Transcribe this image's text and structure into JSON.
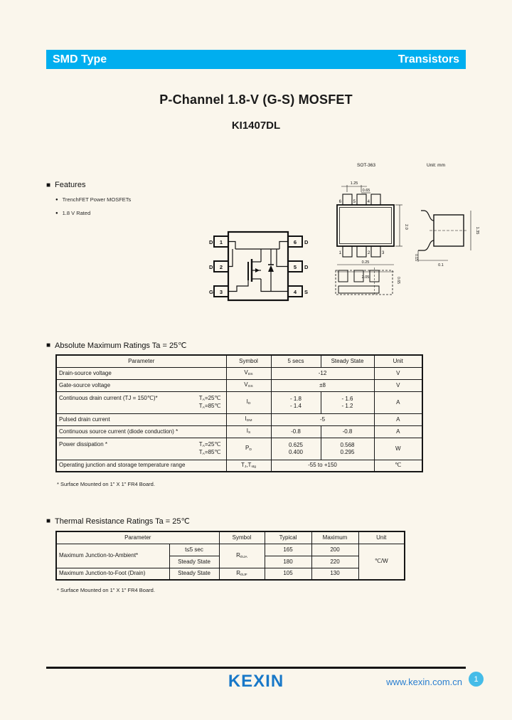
{
  "icons": {
    "square": "■",
    "dot": "●"
  },
  "header": {
    "left": "SMD Type",
    "right": "Transistors",
    "bar_color": "#00aeef"
  },
  "title": {
    "line1": "P-Channel 1.8-V (G-S) MOSFET",
    "line2": "KI1407DL"
  },
  "features": {
    "heading": "Features",
    "items": [
      "TrenchFET  Power MOSFETs",
      "1.8 V Rated"
    ]
  },
  "pkg": {
    "name": "SOT-363",
    "unit": "Unit: mm",
    "pins_top": [
      "6",
      "5",
      "4"
    ],
    "pins_bottom": [
      "1",
      "2",
      "3"
    ],
    "dims": {
      "d1": "1.25",
      "d2": "0.65",
      "d3": "2.0",
      "d4": "0.25",
      "d5": "2.05",
      "d6": "1.35",
      "d7": "0.15",
      "d8": "0.1",
      "d9": "0.65"
    }
  },
  "pinout": {
    "pins": {
      "p1": "1",
      "p2": "2",
      "p3": "3",
      "p4": "4",
      "p5": "5",
      "p6": "6"
    },
    "labels": {
      "l1": "D",
      "l2": "D",
      "l3": "G",
      "r1": "D",
      "r2": "D",
      "r3": "S"
    }
  },
  "absmax": {
    "heading": "Absolute Maximum Ratings Ta = 25℃",
    "columns": [
      "Parameter",
      "Symbol",
      "5 secs",
      "Steady State",
      "Unit"
    ],
    "rows": [
      {
        "param": "Drain-source voltage",
        "sym": [
          [
            "V",
            0
          ],
          [
            "DS",
            1
          ]
        ],
        "value": "-12",
        "unit": "V"
      },
      {
        "param": "Gate-source voltage",
        "sym": [
          [
            "V",
            0
          ],
          [
            "GS",
            1
          ]
        ],
        "value": "±8",
        "unit": "V"
      },
      {
        "param": "Continuous drain current (TJ = 150℃)*",
        "cond": [
          [
            [
              "T",
              0
            ],
            [
              "A",
              1
            ],
            [
              "=25℃",
              0
            ]
          ],
          [
            [
              "T",
              0
            ],
            [
              "A",
              1
            ],
            [
              "=85℃",
              0
            ]
          ]
        ],
        "sym": [
          [
            "I",
            0
          ],
          [
            "D",
            1
          ]
        ],
        "v5": [
          "- 1.8",
          "- 1.4"
        ],
        "vss": [
          "- 1.6",
          "- 1.2"
        ],
        "unit": "A"
      },
      {
        "param": "Pulsed drain current",
        "sym": [
          [
            "I",
            0
          ],
          [
            "DM",
            1
          ]
        ],
        "value": "-5",
        "unit": "A"
      },
      {
        "param": "Continuous source current (diode conduction) *",
        "sym": [
          [
            "I",
            0
          ],
          [
            "S",
            1
          ]
        ],
        "v5": "-0.8",
        "vss": "-0.8",
        "unit": "A"
      },
      {
        "param": "Power dissipation  *",
        "cond": [
          [
            [
              "T",
              0
            ],
            [
              "A",
              1
            ],
            [
              "=25℃",
              0
            ]
          ],
          [
            [
              "T",
              0
            ],
            [
              "A",
              1
            ],
            [
              "=85℃",
              0
            ]
          ]
        ],
        "sym": [
          [
            "P",
            0
          ],
          [
            "D",
            1
          ]
        ],
        "v5": [
          "0.625",
          "0.400"
        ],
        "vss": [
          "0.568",
          "0.295"
        ],
        "unit": "W"
      },
      {
        "param": "Operating junction and storage temperature range",
        "sym": [
          [
            "T",
            0
          ],
          [
            "J",
            1
          ],
          [
            ",T",
            0
          ],
          [
            "stg",
            1
          ]
        ],
        "value": "-55 to +150",
        "unit": "℃"
      }
    ],
    "footnote": "* Surface Mounted on 1\" X 1\" FR4 Board."
  },
  "thermal": {
    "heading": "Thermal Resistance  Ratings Ta = 25℃",
    "columns": [
      "Parameter",
      "Symbol",
      "Typical",
      "Maximum",
      "Unit"
    ],
    "rows": [
      {
        "param": "Maximum Junction-to-Ambient*",
        "cond": "t≤5 sec",
        "sym": [
          [
            "R",
            0
          ],
          [
            "thJA",
            1
          ]
        ],
        "typ": "165",
        "max": "200",
        "unit": "℃/W"
      },
      {
        "cond": "Steady State",
        "typ": "180",
        "max": "220"
      },
      {
        "param": "Maximum Junction-to-Foot (Drain)",
        "cond": "Steady State",
        "sym": [
          [
            "R",
            0
          ],
          [
            "thJF",
            1
          ]
        ],
        "typ": "105",
        "max": "130"
      }
    ],
    "footnote": "* Surface Mounted on 1\" X 1\" FR4 Board."
  },
  "footer": {
    "logo": "KEXIN",
    "url": "www.kexin.com.cn",
    "page": "1"
  }
}
